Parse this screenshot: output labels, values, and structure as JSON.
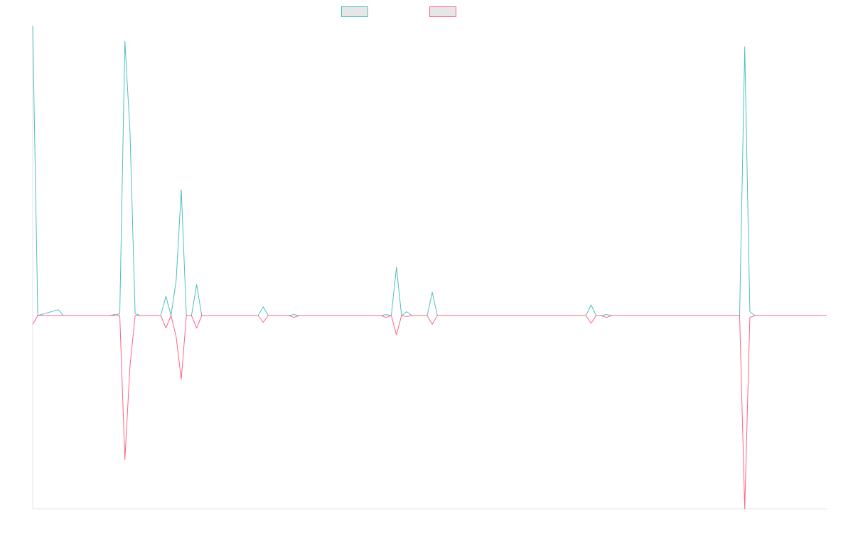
{
  "chart_data": {
    "type": "line",
    "title": "",
    "xlabel": "",
    "ylabel": "",
    "ylim": [
      -1.0,
      1.5
    ],
    "grid": false,
    "legend_position": "top-center",
    "x_count": 155,
    "series": [
      {
        "color": "#4bc0c0",
        "points": [
          [
            0,
            1.5
          ],
          [
            1,
            0
          ],
          [
            5,
            0.03
          ],
          [
            6,
            0
          ],
          [
            16,
            0
          ],
          [
            17,
            0.01
          ],
          [
            18,
            1.42
          ],
          [
            19,
            0.95
          ],
          [
            20,
            0.01
          ],
          [
            21,
            0
          ],
          [
            25,
            0
          ],
          [
            26,
            0.1
          ],
          [
            27,
            0
          ],
          [
            28,
            0.18
          ],
          [
            29,
            0.65
          ],
          [
            30,
            0
          ],
          [
            31,
            0
          ],
          [
            32,
            0.16
          ],
          [
            33,
            0
          ],
          [
            44,
            0
          ],
          [
            45,
            0.045
          ],
          [
            46,
            0
          ],
          [
            50,
            0
          ],
          [
            51,
            0.005
          ],
          [
            52,
            0
          ],
          [
            68,
            0
          ],
          [
            69,
            0.005
          ],
          [
            70,
            0
          ],
          [
            71,
            0.25
          ],
          [
            72,
            0
          ],
          [
            73,
            0.02
          ],
          [
            74,
            0
          ],
          [
            77,
            0
          ],
          [
            78,
            0.12
          ],
          [
            79,
            0
          ],
          [
            108,
            0
          ],
          [
            109,
            0.055
          ],
          [
            110,
            0
          ],
          [
            111,
            0
          ],
          [
            112,
            0.005
          ],
          [
            113,
            0
          ],
          [
            138,
            0
          ],
          [
            139,
            1.39
          ],
          [
            140,
            0.02
          ],
          [
            141,
            0
          ],
          [
            155,
            0
          ]
        ]
      },
      {
        "color": "#ff6384",
        "points": [
          [
            0,
            -0.045
          ],
          [
            1,
            0
          ],
          [
            15,
            0
          ],
          [
            16,
            0.005
          ],
          [
            17,
            0
          ],
          [
            18,
            -0.745
          ],
          [
            19,
            -0.26
          ],
          [
            20,
            0
          ],
          [
            21,
            0
          ],
          [
            25,
            0
          ],
          [
            26,
            -0.065
          ],
          [
            27,
            0
          ],
          [
            28,
            -0.11
          ],
          [
            29,
            -0.33
          ],
          [
            30,
            0
          ],
          [
            31,
            0
          ],
          [
            32,
            -0.065
          ],
          [
            33,
            0
          ],
          [
            44,
            0
          ],
          [
            45,
            -0.035
          ],
          [
            46,
            0
          ],
          [
            50,
            0
          ],
          [
            51,
            -0.01
          ],
          [
            52,
            0
          ],
          [
            68,
            0
          ],
          [
            69,
            -0.01
          ],
          [
            70,
            0
          ],
          [
            71,
            -0.1
          ],
          [
            72,
            0
          ],
          [
            73,
            -0.005
          ],
          [
            74,
            0
          ],
          [
            77,
            0
          ],
          [
            78,
            -0.045
          ],
          [
            79,
            0
          ],
          [
            108,
            0
          ],
          [
            109,
            -0.04
          ],
          [
            110,
            0
          ],
          [
            111,
            0
          ],
          [
            112,
            -0.01
          ],
          [
            113,
            0
          ],
          [
            138,
            0
          ],
          [
            139,
            -1.0
          ],
          [
            140,
            -0.01
          ],
          [
            141,
            0
          ],
          [
            155,
            0
          ]
        ]
      }
    ]
  }
}
